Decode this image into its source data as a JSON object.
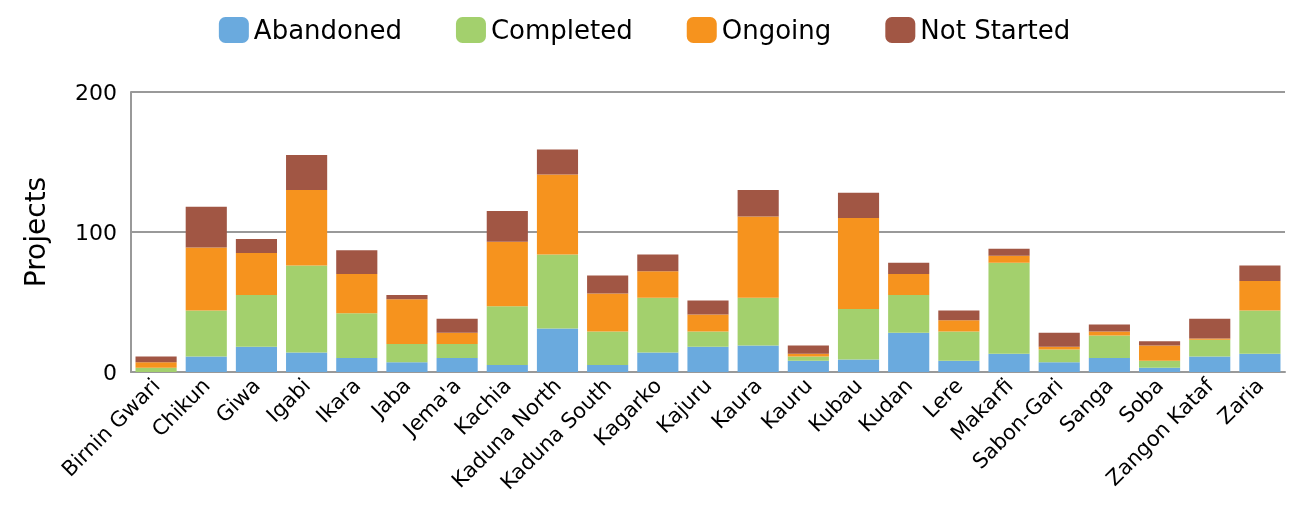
{
  "chart_data": {
    "type": "bar",
    "stacked": true,
    "ylabel": "Projects",
    "categories": [
      "Birnin Gwari",
      "Chikun",
      "Giwa",
      "Igabi",
      "Ikara",
      "Jaba",
      "Jema'a",
      "Kachia",
      "Kaduna North",
      "Kaduna South",
      "Kagarko",
      "Kajuru",
      "Kaura",
      "Kauru",
      "Kubau",
      "Kudan",
      "Lere",
      "Makarfi",
      "Sabon-Gari",
      "Sanga",
      "Soba",
      "Zangon Kataf",
      "Zaria"
    ],
    "series": [
      {
        "name": "Abandoned",
        "color": "#6aaade",
        "values": [
          0,
          11,
          18,
          14,
          10,
          7,
          10,
          5,
          31,
          5,
          14,
          18,
          19,
          8,
          9,
          28,
          8,
          13,
          7,
          10,
          3,
          11,
          13
        ]
      },
      {
        "name": "Completed",
        "color": "#a3d06d",
        "values": [
          3,
          33,
          37,
          62,
          32,
          13,
          10,
          42,
          53,
          24,
          39,
          11,
          34,
          3,
          36,
          27,
          21,
          65,
          9,
          16,
          5,
          12,
          31
        ]
      },
      {
        "name": "Ongoing",
        "color": "#f6931e",
        "values": [
          4,
          45,
          30,
          54,
          28,
          32,
          8,
          46,
          57,
          27,
          19,
          12,
          58,
          2,
          65,
          15,
          8,
          5,
          2,
          3,
          11,
          1,
          21
        ]
      },
      {
        "name": "Not Started",
        "color": "#a15644",
        "values": [
          4,
          29,
          10,
          25,
          17,
          3,
          10,
          22,
          18,
          13,
          12,
          10,
          19,
          6,
          18,
          8,
          7,
          5,
          10,
          5,
          3,
          14,
          11
        ]
      }
    ],
    "ylim": [
      0,
      200
    ],
    "yticks": [
      0,
      100,
      200
    ],
    "grid": "y",
    "legend": "top"
  }
}
